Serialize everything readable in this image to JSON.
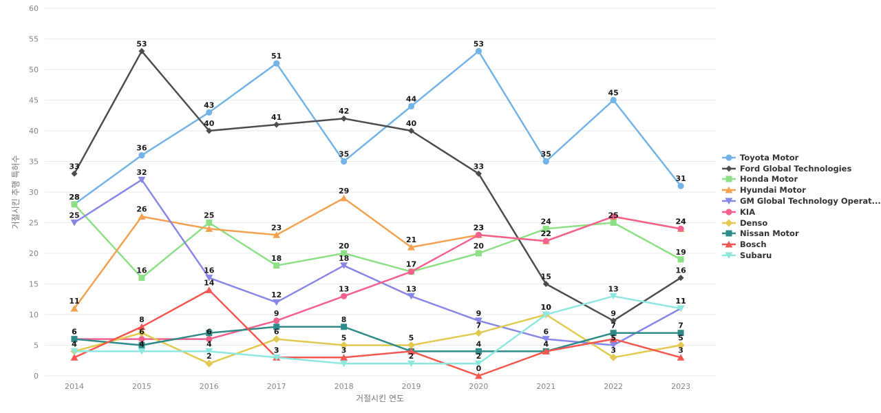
{
  "page": {
    "x_axis_title": "거절시킨 연도",
    "y_axis_title": "거절시킨 추행 특허수"
  },
  "chart_data": {
    "type": "line",
    "x": [
      2014,
      2015,
      2016,
      2017,
      2018,
      2019,
      2020,
      2021,
      2022,
      2023
    ],
    "xlabel": "거절시킨 연도",
    "ylabel": "거절시킨 추행 특허수",
    "ylim": [
      0,
      60
    ],
    "y_ticks": [
      0,
      5,
      10,
      15,
      20,
      25,
      30,
      35,
      40,
      45,
      50,
      55,
      60
    ],
    "grid": "horizontal",
    "legend_position": "right",
    "series": [
      {
        "name": "Toyota Motor",
        "color": "#73b3e7",
        "marker": "circle",
        "values": [
          28,
          36,
          43,
          51,
          35,
          44,
          53,
          35,
          45,
          31
        ],
        "hidden_labels": []
      },
      {
        "name": "Ford Global Technologies",
        "color": "#4d4d4d",
        "marker": "diamond-small",
        "values": [
          33,
          53,
          40,
          41,
          42,
          40,
          33,
          15,
          9,
          16
        ],
        "hidden_labels": []
      },
      {
        "name": "Honda Motor",
        "color": "#8de085",
        "marker": "square",
        "values": [
          28,
          16,
          25,
          18,
          20,
          17,
          20,
          24,
          25,
          19
        ],
        "hidden_labels": []
      },
      {
        "name": "Hyundai Motor",
        "color": "#f5a14f",
        "marker": "triangle-up",
        "values": [
          11,
          26,
          24,
          23,
          29,
          21,
          23,
          22,
          26,
          24
        ],
        "hidden_labels": [
          2,
          8
        ]
      },
      {
        "name": "GM Global Technology Operat...",
        "color": "#8787e8",
        "marker": "triangle-down",
        "values": [
          25,
          32,
          16,
          12,
          18,
          13,
          9,
          6,
          5,
          11
        ],
        "hidden_labels": []
      },
      {
        "name": "KIA",
        "color": "#f4618e",
        "marker": "circle",
        "values": [
          6,
          6,
          6,
          9,
          13,
          17,
          23,
          22,
          26,
          24
        ],
        "hidden_labels": [
          8
        ]
      },
      {
        "name": "Denso",
        "color": "#e2c94f",
        "marker": "diamond",
        "values": [
          4,
          7,
          2,
          6,
          5,
          5,
          7,
          10,
          3,
          5
        ],
        "hidden_labels": [
          1
        ]
      },
      {
        "name": "Nissan Motor",
        "color": "#2f8b89",
        "marker": "square",
        "values": [
          6,
          5,
          7,
          8,
          8,
          4,
          4,
          4,
          7,
          7
        ],
        "hidden_labels": [
          1,
          2,
          3,
          5
        ]
      },
      {
        "name": "Bosch",
        "color": "#f4574f",
        "marker": "triangle-up",
        "values": [
          3,
          8,
          14,
          3,
          3,
          4,
          0,
          4,
          6,
          3
        ],
        "hidden_labels": [
          0,
          5,
          8
        ]
      },
      {
        "name": "Subaru",
        "color": "#8fe8e0",
        "marker": "triangle-down",
        "values": [
          4,
          4,
          4,
          3,
          2,
          2,
          2,
          10,
          13,
          11
        ],
        "hidden_labels": [
          4
        ]
      }
    ]
  }
}
